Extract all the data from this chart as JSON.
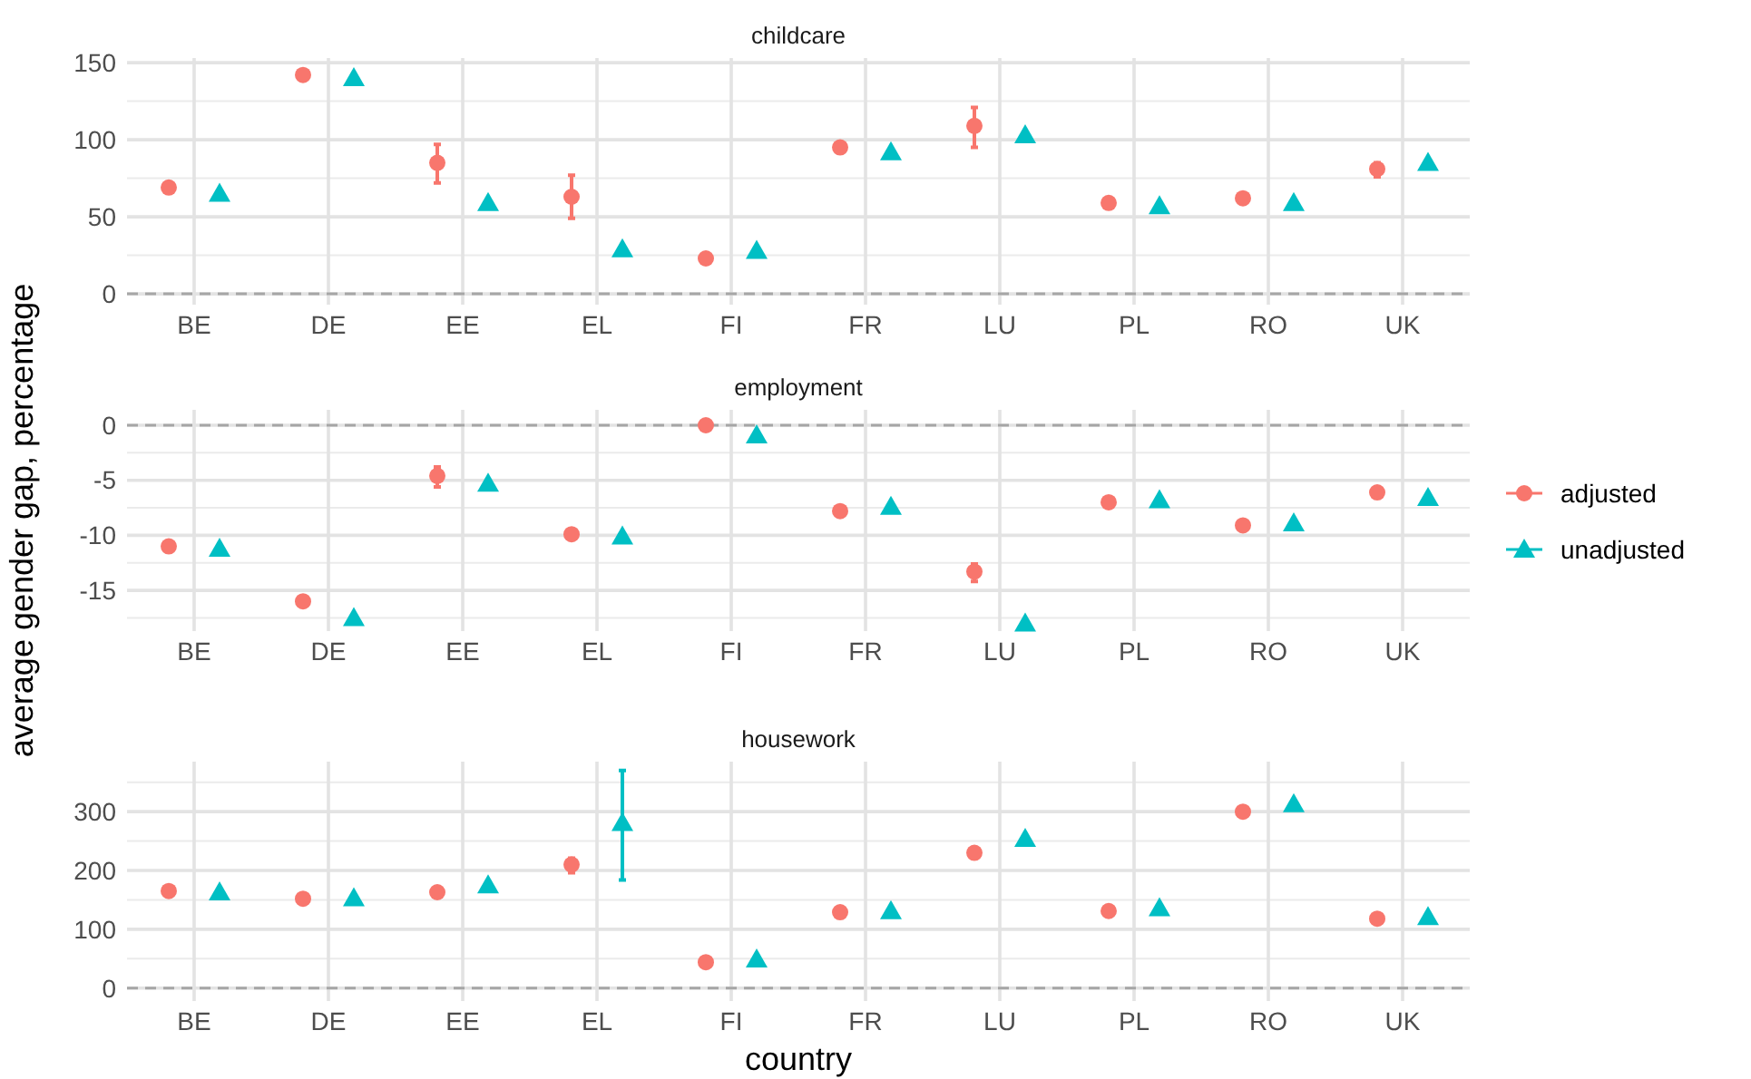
{
  "chart_data": [
    {
      "type": "scatter",
      "title": "childcare",
      "categories": [
        "BE",
        "DE",
        "EE",
        "EL",
        "FI",
        "FR",
        "LU",
        "PL",
        "RO",
        "UK"
      ],
      "ylim": [
        -7,
        153
      ],
      "yticks": [
        0,
        50,
        100,
        150
      ],
      "grid": true,
      "ref_lines": [
        {
          "axis": "y",
          "value": 0,
          "color": "#a6a6a6",
          "line_style": "dashed"
        }
      ],
      "series": [
        {
          "color": "#f8766d",
          "marker": "circle",
          "values": [
            69,
            142,
            85,
            63,
            23,
            95,
            109,
            59,
            62,
            81
          ],
          "errors": [
            null,
            null,
            [
              72,
              97
            ],
            [
              49,
              77
            ],
            null,
            null,
            [
              95,
              121
            ],
            null,
            null,
            [
              76,
              85
            ]
          ]
        },
        {
          "color": "#00bfc4",
          "marker": "triangle",
          "values": [
            65,
            140,
            59,
            29,
            28,
            92,
            103,
            57,
            59,
            85
          ],
          "errors": [
            null,
            null,
            null,
            null,
            null,
            null,
            null,
            null,
            null,
            null
          ]
        }
      ]
    },
    {
      "type": "scatter",
      "title": "employment",
      "ylabel": "average gender gap, percentage",
      "legend": "right",
      "categories": [
        "BE",
        "DE",
        "EE",
        "EL",
        "FI",
        "FR",
        "LU",
        "PL",
        "RO",
        "UK"
      ],
      "ylim": [
        -18.7,
        1.4
      ],
      "yticks": [
        -15,
        -10,
        -5,
        0
      ],
      "grid": true,
      "ref_lines": [
        {
          "axis": "y",
          "value": 0,
          "color": "#a6a6a6",
          "line_style": "dashed"
        }
      ],
      "series": [
        {
          "name": "adjusted",
          "color": "#f8766d",
          "marker": "circle",
          "values": [
            -11.0,
            -16.0,
            -4.6,
            -9.9,
            0,
            -7.8,
            -13.3,
            -7.0,
            -9.1,
            -6.1
          ],
          "errors": [
            null,
            null,
            [
              -5.6,
              -3.8
            ],
            null,
            null,
            null,
            [
              -14.2,
              -12.6
            ],
            null,
            null,
            null
          ]
        },
        {
          "name": "unadjusted",
          "color": "#00bfc4",
          "marker": "triangle",
          "values": [
            -11.2,
            -17.5,
            -5.3,
            -10.1,
            -0.9,
            -7.4,
            -18.0,
            -6.8,
            -8.9,
            -6.6
          ],
          "errors": [
            null,
            null,
            null,
            null,
            null,
            null,
            null,
            null,
            null,
            null
          ]
        }
      ]
    },
    {
      "type": "scatter",
      "title": "housework",
      "xlabel": "country",
      "categories": [
        "BE",
        "DE",
        "EE",
        "EL",
        "FI",
        "FR",
        "LU",
        "PL",
        "RO",
        "UK"
      ],
      "ylim": [
        -22,
        385
      ],
      "yticks": [
        0,
        100,
        200,
        300
      ],
      "grid": true,
      "ref_lines": [
        {
          "axis": "y",
          "value": 0,
          "color": "#a6a6a6",
          "line_style": "dashed"
        }
      ],
      "series": [
        {
          "color": "#f8766d",
          "marker": "circle",
          "values": [
            165,
            152,
            163,
            210,
            44,
            129,
            230,
            131,
            300,
            118
          ],
          "errors": [
            null,
            null,
            null,
            [
              196,
              221
            ],
            null,
            null,
            null,
            null,
            null,
            null
          ]
        },
        {
          "color": "#00bfc4",
          "marker": "triangle",
          "values": [
            163,
            153,
            175,
            281,
            49,
            131,
            254,
            136,
            313,
            121
          ],
          "errors": [
            null,
            null,
            null,
            [
              184,
              370
            ],
            null,
            null,
            null,
            null,
            null,
            null
          ]
        }
      ]
    }
  ]
}
